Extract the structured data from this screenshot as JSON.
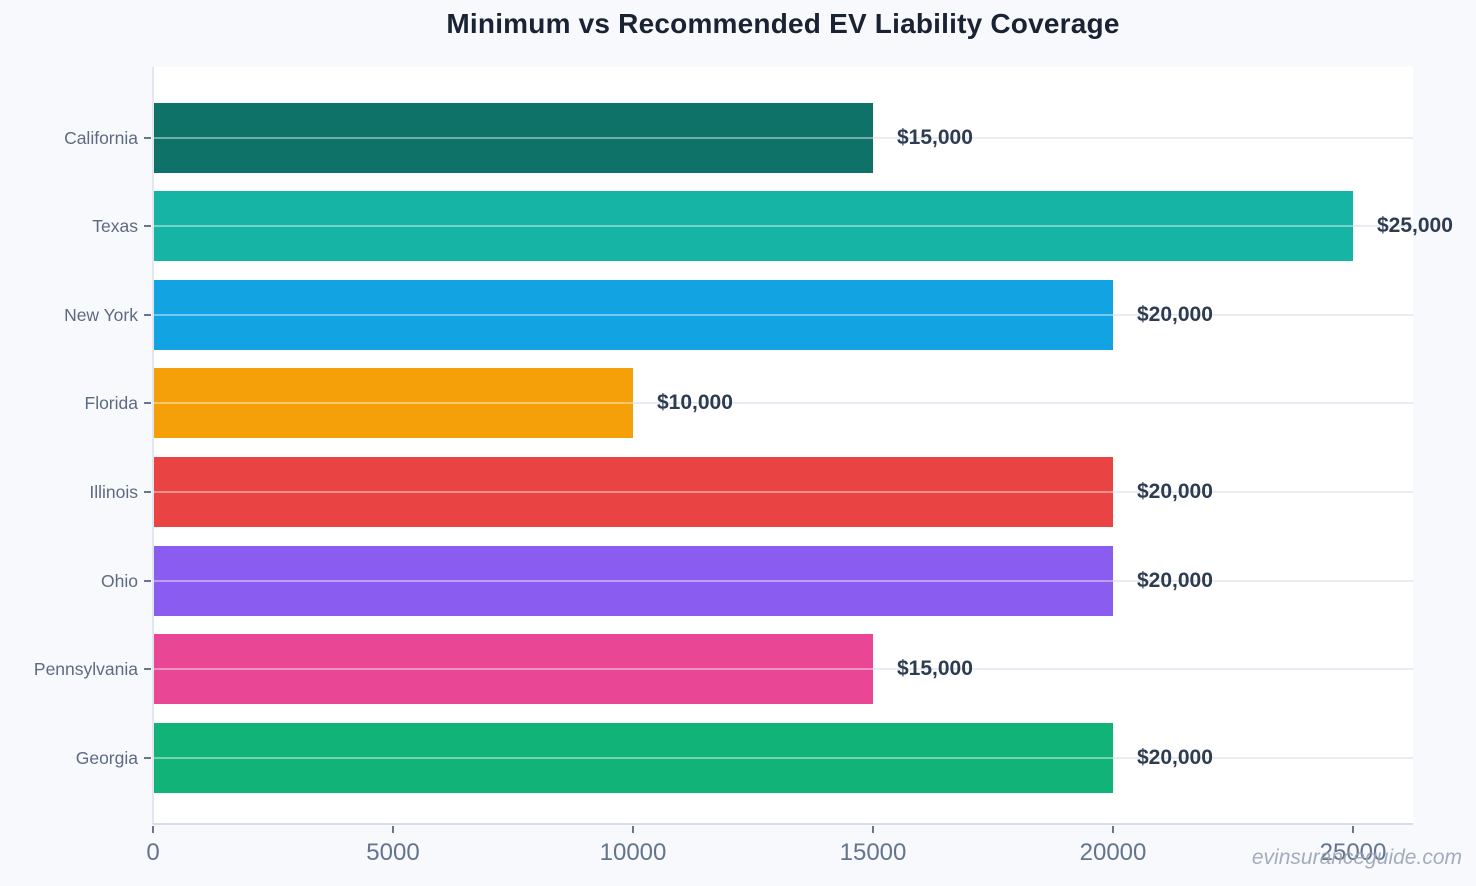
{
  "chart_data": {
    "type": "bar",
    "orientation": "horizontal",
    "title": "Minimum vs Recommended EV Liability Coverage",
    "categories": [
      "California",
      "Texas",
      "New York",
      "Florida",
      "Illinois",
      "Ohio",
      "Pennsylvania",
      "Georgia"
    ],
    "values": [
      15000,
      25000,
      20000,
      10000,
      20000,
      20000,
      15000,
      20000
    ],
    "value_labels": [
      "$15,000",
      "$25,000",
      "$20,000",
      "$10,000",
      "$20,000",
      "$20,000",
      "$15,000",
      "$20,000"
    ],
    "bar_colors": [
      "#0f7268",
      "#16b4a4",
      "#12a3e3",
      "#f5a008",
      "#ea4343",
      "#8a5cf0",
      "#e94795",
      "#12b378"
    ],
    "xlim": [
      0,
      26250
    ],
    "x_ticks": [
      0,
      5000,
      10000,
      15000,
      20000,
      25000
    ],
    "x_tick_labels": [
      "0",
      "5000",
      "10000",
      "15000",
      "20000",
      "25000"
    ],
    "grid": "horizontal-category-lines",
    "legend": false
  },
  "watermark": "evinsuranceguide.com",
  "colors": {
    "background": "#f7f9fc",
    "plot_background": "#ffffff",
    "title": "#1a2333",
    "category_label": "#5d6b80",
    "tick_label": "#64748b",
    "tick_mark": "#6b7689",
    "value_label": "#2e3c52",
    "axis_line": "#dadde8",
    "left_spine": "#e2e6ee",
    "gridline": "#e8edf3",
    "watermark": "#9aa4b5"
  }
}
